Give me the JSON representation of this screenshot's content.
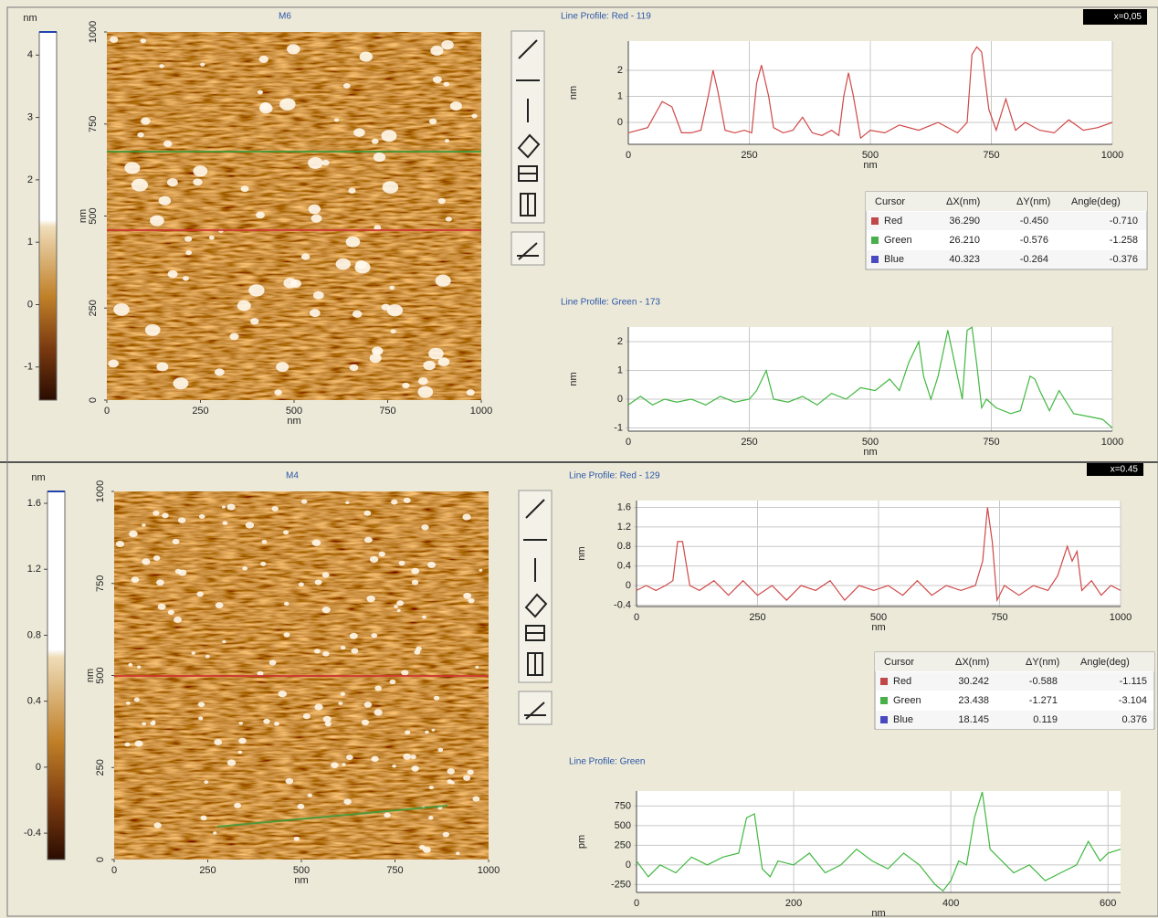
{
  "panels": [
    {
      "badge": "x=0,05",
      "scale": {
        "unit": "nm",
        "lim": [
          -1.53,
          4.37
        ],
        "ticks": [
          4,
          3,
          2,
          1,
          0,
          -1
        ]
      },
      "image": {
        "title": "M6",
        "xlabel": "nm",
        "ylabel": "nm",
        "xlim": [
          0,
          1000
        ],
        "ylim": [
          0,
          1000
        ],
        "xticks": [
          0,
          250,
          500,
          750,
          1000
        ],
        "yticks": [
          0,
          250,
          500,
          750,
          1000
        ]
      },
      "profiles": [
        {
          "title": "Line Profile: Red  -  119",
          "xlabel": "nm",
          "ylabel": "nm",
          "color": "#d04848",
          "xlim": [
            0,
            1000
          ],
          "ylim": [
            -0.84,
            3.12
          ],
          "xticks": [
            0,
            250,
            500,
            750,
            1000
          ],
          "yticks": [
            0,
            1,
            2
          ],
          "x": [
            0,
            20,
            40,
            55,
            70,
            90,
            110,
            130,
            150,
            165,
            175,
            185,
            200,
            220,
            240,
            255,
            265,
            275,
            290,
            300,
            320,
            340,
            360,
            380,
            400,
            420,
            435,
            445,
            455,
            465,
            480,
            500,
            530,
            560,
            600,
            640,
            680,
            700,
            710,
            720,
            730,
            745,
            760,
            780,
            790,
            800,
            820,
            850,
            880,
            910,
            940,
            970,
            1000
          ],
          "y": [
            -0.4,
            -0.3,
            -0.2,
            0.3,
            0.8,
            0.6,
            -0.4,
            -0.4,
            -0.3,
            1.0,
            2.0,
            1.2,
            -0.3,
            -0.4,
            -0.3,
            -0.4,
            1.5,
            2.2,
            1.0,
            -0.2,
            -0.4,
            -0.3,
            0.2,
            -0.4,
            -0.5,
            -0.3,
            -0.5,
            1.0,
            1.9,
            1.0,
            -0.6,
            -0.3,
            -0.4,
            -0.1,
            -0.3,
            0.0,
            -0.4,
            0.0,
            2.6,
            2.9,
            2.7,
            0.5,
            -0.3,
            0.9,
            0.3,
            -0.3,
            0.0,
            -0.3,
            -0.4,
            0.1,
            -0.3,
            -0.2,
            0.0
          ]
        },
        {
          "title": "Line Profile: Green  -  173",
          "xlabel": "nm",
          "ylabel": "nm",
          "color": "#40b840",
          "xlim": [
            0,
            1000
          ],
          "ylim": [
            -1.11,
            2.51
          ],
          "xticks": [
            0,
            250,
            500,
            750,
            1000
          ],
          "yticks": [
            -1,
            0,
            1,
            2
          ],
          "x": [
            0,
            25,
            50,
            75,
            100,
            130,
            160,
            190,
            220,
            250,
            265,
            285,
            300,
            330,
            360,
            390,
            420,
            450,
            480,
            510,
            540,
            560,
            580,
            600,
            610,
            625,
            640,
            660,
            680,
            690,
            700,
            710,
            720,
            730,
            740,
            760,
            790,
            810,
            830,
            840,
            850,
            870,
            890,
            920,
            950,
            980,
            1000
          ],
          "y": [
            -0.2,
            0.1,
            -0.2,
            0.0,
            -0.1,
            0.0,
            -0.2,
            0.1,
            -0.1,
            0.0,
            0.3,
            1.0,
            0.0,
            -0.1,
            0.1,
            -0.2,
            0.2,
            0.0,
            0.4,
            0.3,
            0.7,
            0.3,
            1.3,
            2.0,
            0.8,
            0.0,
            0.8,
            2.4,
            0.8,
            0.0,
            2.4,
            2.5,
            1.2,
            -0.3,
            0.0,
            -0.3,
            -0.5,
            -0.4,
            0.8,
            0.7,
            0.3,
            -0.4,
            0.3,
            -0.5,
            -0.6,
            -0.7,
            -1.0
          ]
        }
      ],
      "table": {
        "header": [
          "Cursor",
          "ΔX(nm)",
          "ΔY(nm)",
          "Angle(deg)"
        ],
        "rows": [
          [
            "Red",
            "36.290",
            "-0.450",
            "-0.710"
          ],
          [
            "Green",
            "26.210",
            "-0.576",
            "-1.258"
          ],
          [
            "Blue",
            "40.323",
            "-0.264",
            "-0.376"
          ]
        ]
      }
    },
    {
      "badge": "x=0.45",
      "scale": {
        "unit": "nm",
        "lim": [
          -0.56,
          1.672
        ],
        "ticks": [
          1.6,
          1.2,
          0.8,
          0.4,
          0,
          -0.4
        ]
      },
      "image": {
        "title": "M4",
        "xlabel": "nm",
        "ylabel": "nm",
        "xlim": [
          0,
          1000
        ],
        "ylim": [
          0,
          1000
        ],
        "xticks": [
          0,
          250,
          500,
          750,
          1000
        ],
        "yticks": [
          0,
          250,
          500,
          750,
          1000
        ]
      },
      "profiles": [
        {
          "title": "Line Profile: Red  -  129",
          "xlabel": "nm",
          "ylabel": "nm",
          "color": "#d04848",
          "xlim": [
            0,
            1000
          ],
          "ylim": [
            -0.43,
            1.74
          ],
          "xticks": [
            0,
            250,
            500,
            750,
            1000
          ],
          "yticks": [
            -0.4,
            0,
            0.4,
            0.8,
            1.2,
            1.6
          ],
          "x": [
            0,
            20,
            40,
            60,
            75,
            85,
            95,
            110,
            130,
            160,
            190,
            220,
            250,
            280,
            310,
            340,
            370,
            400,
            430,
            460,
            490,
            520,
            550,
            580,
            610,
            640,
            670,
            700,
            715,
            725,
            735,
            745,
            760,
            790,
            820,
            850,
            870,
            890,
            900,
            910,
            920,
            940,
            960,
            980,
            1000
          ],
          "y": [
            -0.1,
            0.0,
            -0.1,
            0.0,
            0.1,
            0.9,
            0.9,
            0.0,
            -0.1,
            0.1,
            -0.2,
            0.1,
            -0.2,
            0.0,
            -0.3,
            0.0,
            -0.1,
            0.1,
            -0.3,
            0.0,
            -0.1,
            0.0,
            -0.2,
            0.1,
            -0.2,
            0.0,
            -0.1,
            0.0,
            0.5,
            1.6,
            0.9,
            -0.3,
            0.0,
            -0.2,
            0.0,
            -0.1,
            0.2,
            0.8,
            0.5,
            0.7,
            -0.1,
            0.1,
            -0.2,
            0.0,
            -0.1
          ]
        },
        {
          "title": "Line Profile: Green",
          "xlabel": "nm",
          "ylabel": "pm",
          "color": "#40b840",
          "xlim": [
            0,
            616
          ],
          "ylim": [
            -350,
            940
          ],
          "xticks": [
            0,
            200,
            400,
            600
          ],
          "yticks": [
            -250,
            0,
            250,
            500,
            750
          ],
          "x": [
            0,
            15,
            30,
            50,
            70,
            90,
            110,
            130,
            140,
            150,
            160,
            170,
            180,
            200,
            220,
            240,
            260,
            280,
            300,
            320,
            340,
            360,
            380,
            390,
            400,
            410,
            420,
            430,
            440,
            450,
            460,
            480,
            500,
            520,
            540,
            560,
            575,
            590,
            600,
            616
          ],
          "y": [
            50,
            -150,
            0,
            -100,
            100,
            0,
            100,
            150,
            600,
            650,
            -50,
            -150,
            50,
            0,
            150,
            -100,
            0,
            200,
            50,
            -50,
            150,
            0,
            -250,
            -330,
            -200,
            50,
            0,
            600,
            930,
            200,
            100,
            -100,
            0,
            -200,
            -100,
            0,
            300,
            50,
            150,
            200
          ]
        }
      ],
      "table": {
        "header": [
          "Cursor",
          "ΔX(nm)",
          "ΔY(nm)",
          "Angle(deg)"
        ],
        "rows": [
          [
            "Red",
            "30.242",
            "-0.588",
            "-1.115"
          ],
          [
            "Green",
            "23.438",
            "-1.271",
            "-3.104"
          ],
          [
            "Blue",
            "18.145",
            "0.119",
            "0.376"
          ]
        ]
      }
    }
  ]
}
